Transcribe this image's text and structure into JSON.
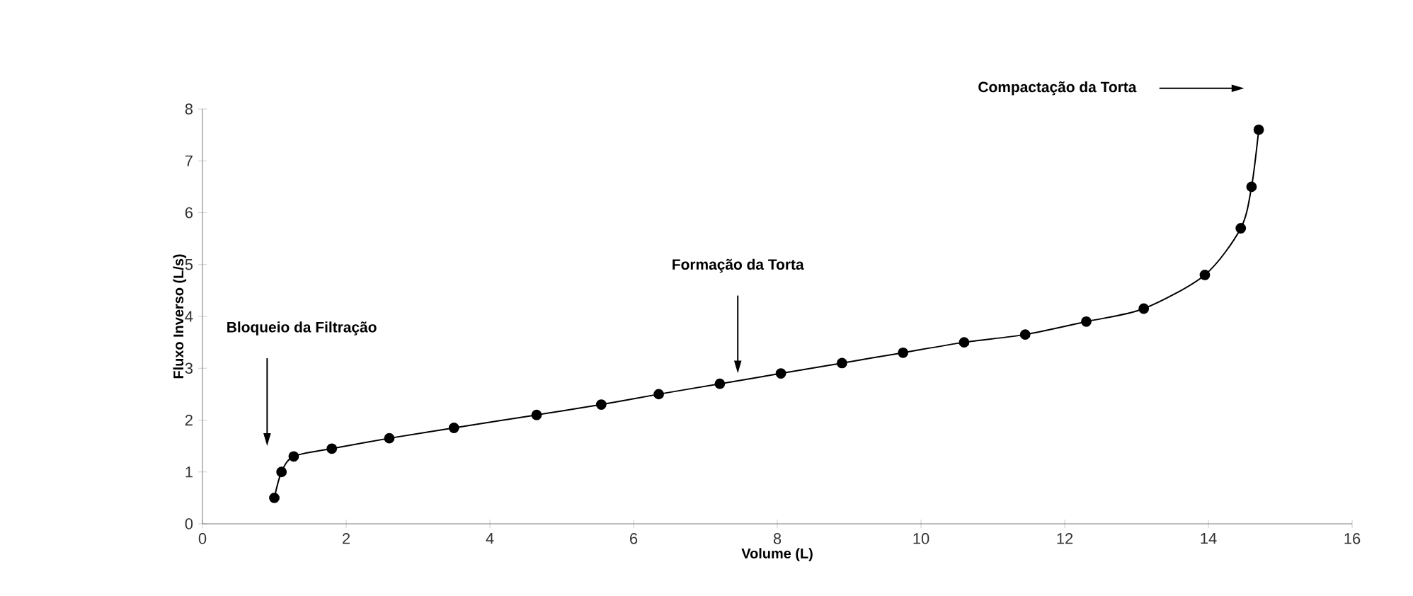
{
  "chart_data": {
    "type": "line",
    "xlabel": "Volume (L)",
    "ylabel": "Fluxo Inverso (L/s)",
    "xlim": [
      0,
      16
    ],
    "ylim": [
      0,
      8
    ],
    "xticks": [
      0,
      2,
      4,
      6,
      8,
      10,
      12,
      14,
      16
    ],
    "yticks": [
      0,
      1,
      2,
      3,
      4,
      5,
      6,
      7,
      8
    ],
    "marker": "circle",
    "line_style": "solid",
    "series": [
      {
        "color": "#000000",
        "x": [
          1.0,
          1.1,
          1.27,
          1.8,
          2.6,
          3.5,
          4.65,
          5.55,
          6.35,
          7.2,
          8.05,
          8.9,
          9.75,
          10.6,
          11.45,
          12.3,
          13.1,
          13.95,
          14.45,
          14.6,
          14.7
        ],
        "values": [
          0.5,
          1.0,
          1.3,
          1.45,
          1.65,
          1.85,
          2.1,
          2.3,
          2.5,
          2.7,
          2.9,
          3.1,
          3.3,
          3.5,
          3.65,
          3.9,
          4.15,
          4.8,
          5.7,
          6.5,
          7.6
        ]
      }
    ],
    "annotations": [
      "Bloqueio da Filtração",
      "Formação da Torta",
      "Compactação da Torta"
    ]
  }
}
